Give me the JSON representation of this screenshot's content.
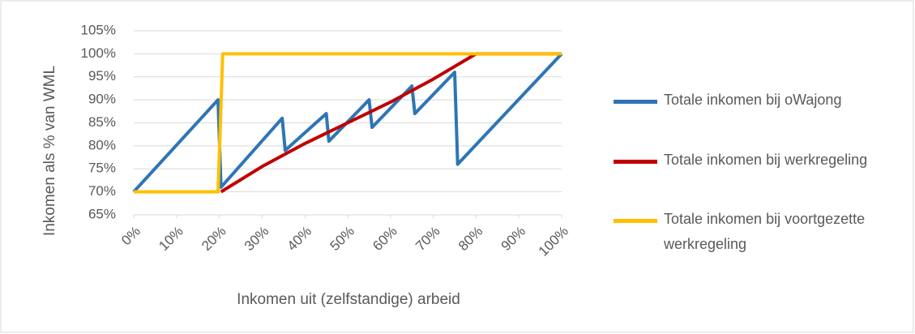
{
  "chart_data": {
    "type": "line",
    "x_label": "Inkomen uit (zelfstandige) arbeid",
    "y_label": "Inkomen als % van WML",
    "xlim": [
      0,
      100
    ],
    "xticks": [
      {
        "value": 0,
        "label": "0%"
      },
      {
        "value": 10,
        "label": "10%"
      },
      {
        "value": 20,
        "label": "20%"
      },
      {
        "value": 30,
        "label": "30%"
      },
      {
        "value": 40,
        "label": "40%"
      },
      {
        "value": 50,
        "label": "50%"
      },
      {
        "value": 60,
        "label": "60%"
      },
      {
        "value": 70,
        "label": "70%"
      },
      {
        "value": 80,
        "label": "80%"
      },
      {
        "value": 90,
        "label": "90%"
      },
      {
        "value": 100,
        "label": "100%"
      }
    ],
    "ylim": [
      65,
      105
    ],
    "yticks": [
      {
        "value": 65,
        "label": "65%"
      },
      {
        "value": 70,
        "label": "70%"
      },
      {
        "value": 75,
        "label": "75%"
      },
      {
        "value": 80,
        "label": "80%"
      },
      {
        "value": 85,
        "label": "85%"
      },
      {
        "value": 90,
        "label": "90%"
      },
      {
        "value": 95,
        "label": "95%"
      },
      {
        "value": 100,
        "label": "100%"
      },
      {
        "value": 105,
        "label": "105%"
      }
    ],
    "grid": true,
    "legend": "right",
    "series": [
      {
        "name": "Totale inkomen bij oWajong",
        "color": "#2e75b6",
        "x": [
          0,
          19.7,
          20.4,
          34.7,
          35.4,
          45,
          45.6,
          55,
          55.7,
          65,
          65.7,
          75,
          75.7,
          100
        ],
        "values": [
          70,
          90,
          71,
          86,
          79,
          87,
          81,
          90,
          84,
          93,
          87,
          96,
          76,
          100
        ]
      },
      {
        "name": "Totale inkomen bij werkregeling",
        "color": "#c00000",
        "x": [
          20.4,
          30,
          40,
          50,
          60,
          70,
          80,
          100
        ],
        "values": [
          70,
          75.5,
          80.5,
          85,
          89.5,
          94.5,
          100,
          100
        ]
      },
      {
        "name": "Totale inkomen bij voortgezette werkregeling",
        "color": "#ffc000",
        "x": [
          0,
          19.7,
          20.8,
          100
        ],
        "values": [
          70,
          70,
          100,
          100
        ]
      }
    ]
  }
}
